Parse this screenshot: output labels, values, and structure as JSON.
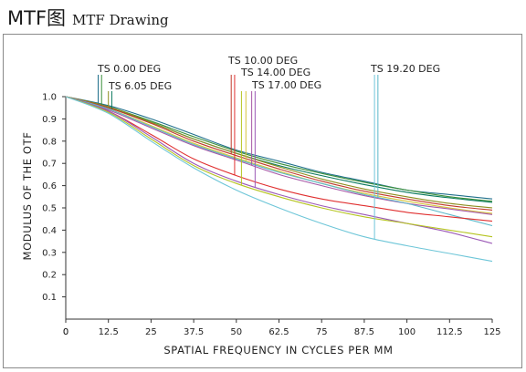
{
  "header": {
    "title_main": "MTF图",
    "title_sub": "MTF Drawing"
  },
  "chart_data": {
    "type": "line",
    "title": "",
    "xlabel": "SPATIAL FREQUENCY IN CYCLES PER MM",
    "ylabel": "MODULUS OF THE OTF",
    "xlim": [
      0,
      125
    ],
    "ylim": [
      0,
      1.0
    ],
    "x_ticks": [
      "0",
      "12.5",
      "25",
      "37.5",
      "50",
      "62.5",
      "75",
      "87.5",
      "100",
      "112.5",
      "125"
    ],
    "y_ticks": [
      "0.1",
      "0.2",
      "0.3",
      "0.4",
      "0.5",
      "0.6",
      "0.7",
      "0.8",
      "0.9",
      "1.0"
    ],
    "x": [
      0,
      12.5,
      25,
      37.5,
      50,
      62.5,
      75,
      87.5,
      100,
      112.5,
      125
    ],
    "field_labels": [
      "TS 0.00 DEG",
      "TS 6.05 DEG",
      "TS 10.00 DEG",
      "TS 14.00 DEG",
      "TS 17.00 DEG",
      "TS 19.20 DEG"
    ],
    "series": [
      {
        "color": "#1f6f8b",
        "values": [
          1.0,
          0.96,
          0.9,
          0.83,
          0.76,
          0.71,
          0.66,
          0.62,
          0.58,
          0.56,
          0.54
        ]
      },
      {
        "color": "#3a8f3a",
        "values": [
          1.0,
          0.955,
          0.89,
          0.82,
          0.755,
          0.7,
          0.655,
          0.615,
          0.58,
          0.55,
          0.53
        ]
      },
      {
        "color": "#0b7a5e",
        "values": [
          1.0,
          0.95,
          0.885,
          0.81,
          0.745,
          0.69,
          0.645,
          0.605,
          0.57,
          0.545,
          0.525
        ]
      },
      {
        "color": "#8e8e1e",
        "values": [
          1.0,
          0.955,
          0.885,
          0.81,
          0.745,
          0.685,
          0.63,
          0.585,
          0.55,
          0.52,
          0.5
        ]
      },
      {
        "color": "#c0392b",
        "values": [
          1.0,
          0.95,
          0.88,
          0.8,
          0.735,
          0.675,
          0.62,
          0.575,
          0.54,
          0.51,
          0.49
        ]
      },
      {
        "color": "#d4c33a",
        "values": [
          1.0,
          0.945,
          0.87,
          0.79,
          0.725,
          0.665,
          0.61,
          0.565,
          0.53,
          0.5,
          0.475
        ]
      },
      {
        "color": "#a657a6",
        "values": [
          1.0,
          0.94,
          0.86,
          0.78,
          0.715,
          0.65,
          0.6,
          0.555,
          0.52,
          0.495,
          0.47
        ]
      },
      {
        "color": "#5bb8c9",
        "values": [
          1.0,
          0.945,
          0.865,
          0.785,
          0.72,
          0.66,
          0.61,
          0.56,
          0.52,
          0.47,
          0.42
        ]
      },
      {
        "color": "#e03030",
        "values": [
          1.0,
          0.935,
          0.83,
          0.72,
          0.645,
          0.585,
          0.54,
          0.51,
          0.48,
          0.46,
          0.44
        ]
      },
      {
        "color": "#9b59b6",
        "values": [
          1.0,
          0.935,
          0.82,
          0.7,
          0.62,
          0.56,
          0.51,
          0.47,
          0.43,
          0.39,
          0.34
        ]
      },
      {
        "color": "#b5c420",
        "values": [
          1.0,
          0.93,
          0.81,
          0.69,
          0.61,
          0.55,
          0.5,
          0.46,
          0.43,
          0.4,
          0.37
        ]
      },
      {
        "color": "#6ec6d8",
        "values": [
          1.0,
          0.925,
          0.8,
          0.68,
          0.58,
          0.5,
          0.43,
          0.37,
          0.33,
          0.295,
          0.26
        ]
      }
    ],
    "annotations": [
      {
        "label": "TS 0.00 DEG",
        "freq": 9.5,
        "color": "#1f6f8b"
      },
      {
        "label": "TS 0.00 DEG",
        "freq": 10.5,
        "color": "#3a8f3a"
      },
      {
        "label": "TS 6.05 DEG",
        "freq": 12.5,
        "color": "#8e8e1e"
      },
      {
        "label": "TS 6.05 DEG",
        "freq": 13.5,
        "color": "#0b7a5e"
      },
      {
        "label": "TS 10.00 DEG",
        "freq": 48.5,
        "color": "#c0392b"
      },
      {
        "label": "TS 10.00 DEG",
        "freq": 49.5,
        "color": "#e03030"
      },
      {
        "label": "TS 14.00 DEG",
        "freq": 51.5,
        "color": "#b5c420"
      },
      {
        "label": "TS 14.00 DEG",
        "freq": 52.8,
        "color": "#d4c33a"
      },
      {
        "label": "TS 17.00 DEG",
        "freq": 54.5,
        "color": "#a657a6"
      },
      {
        "label": "TS 17.00 DEG",
        "freq": 55.5,
        "color": "#9b59b6"
      },
      {
        "label": "TS 19.20 DEG",
        "freq": 90.5,
        "color": "#6ec6d8"
      },
      {
        "label": "TS 19.20 DEG",
        "freq": 91.5,
        "color": "#5bb8c9"
      }
    ],
    "grid": false,
    "legend": "none"
  }
}
